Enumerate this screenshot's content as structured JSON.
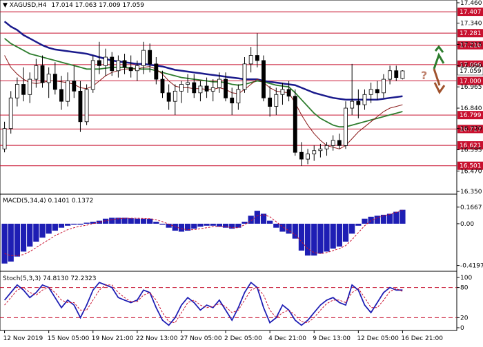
{
  "chart_data": [
    {
      "type": "candlestick",
      "title": "XAGUSD,H4  17.014 17.063 17.009 17.059",
      "symbol": "XAGUSD,H4",
      "ohlc_label": "17.014 17.063 17.009 17.059",
      "ylim": [
        16.35,
        17.46
      ],
      "y_ticks": [
        "17.460",
        "17.340",
        "17.215",
        "17.090",
        "16.965",
        "16.840",
        "16.720",
        "16.595",
        "16.470",
        "16.350"
      ],
      "resistance_levels": [
        "17.407",
        "17.281",
        "17.210",
        "17.096"
      ],
      "support_levels": [
        "17.000",
        "16.799",
        "16.717",
        "16.621",
        "16.501"
      ],
      "current_price": "17.059",
      "scenario_marks": {
        "question": "?",
        "up_target": "17.210",
        "down_target": "17.000"
      },
      "candles": [
        {
          "o": 16.6,
          "h": 16.76,
          "l": 16.58,
          "c": 16.72
        },
        {
          "o": 16.72,
          "h": 16.94,
          "l": 16.69,
          "c": 16.9
        },
        {
          "o": 16.9,
          "h": 17.02,
          "l": 16.85,
          "c": 16.98
        },
        {
          "o": 16.98,
          "h": 17.08,
          "l": 16.88,
          "c": 16.92
        },
        {
          "o": 16.92,
          "h": 17.05,
          "l": 16.87,
          "c": 17.01
        },
        {
          "o": 17.01,
          "h": 17.13,
          "l": 16.96,
          "c": 17.09
        },
        {
          "o": 17.09,
          "h": 17.15,
          "l": 16.96,
          "c": 16.99
        },
        {
          "o": 16.99,
          "h": 17.08,
          "l": 16.9,
          "c": 17.04
        },
        {
          "o": 17.04,
          "h": 17.11,
          "l": 16.92,
          "c": 16.95
        },
        {
          "o": 16.95,
          "h": 17.03,
          "l": 16.83,
          "c": 16.88
        },
        {
          "o": 16.88,
          "h": 17.05,
          "l": 16.85,
          "c": 17.0
        },
        {
          "o": 17.0,
          "h": 17.09,
          "l": 16.9,
          "c": 16.94
        },
        {
          "o": 16.94,
          "h": 17.0,
          "l": 16.7,
          "c": 16.76
        },
        {
          "o": 16.76,
          "h": 16.98,
          "l": 16.74,
          "c": 16.95
        },
        {
          "o": 16.95,
          "h": 17.15,
          "l": 16.93,
          "c": 17.12
        },
        {
          "o": 17.12,
          "h": 17.23,
          "l": 17.04,
          "c": 17.09
        },
        {
          "o": 17.09,
          "h": 17.19,
          "l": 17.03,
          "c": 17.14
        },
        {
          "o": 17.14,
          "h": 17.17,
          "l": 17.03,
          "c": 17.06
        },
        {
          "o": 17.06,
          "h": 17.15,
          "l": 17.02,
          "c": 17.12
        },
        {
          "o": 17.12,
          "h": 17.16,
          "l": 17.04,
          "c": 17.08
        },
        {
          "o": 17.08,
          "h": 17.15,
          "l": 17.02,
          "c": 17.06
        },
        {
          "o": 17.06,
          "h": 17.12,
          "l": 17.0,
          "c": 17.09
        },
        {
          "o": 17.09,
          "h": 17.23,
          "l": 17.04,
          "c": 17.18
        },
        {
          "o": 17.18,
          "h": 17.22,
          "l": 17.05,
          "c": 17.1
        },
        {
          "o": 17.1,
          "h": 17.14,
          "l": 16.98,
          "c": 17.01
        },
        {
          "o": 17.01,
          "h": 17.06,
          "l": 16.9,
          "c": 16.93
        },
        {
          "o": 16.93,
          "h": 16.98,
          "l": 16.83,
          "c": 16.88
        },
        {
          "o": 16.88,
          "h": 16.98,
          "l": 16.8,
          "c": 16.94
        },
        {
          "o": 16.94,
          "h": 17.0,
          "l": 16.87,
          "c": 16.98
        },
        {
          "o": 16.98,
          "h": 17.04,
          "l": 16.93,
          "c": 16.99
        },
        {
          "o": 16.99,
          "h": 17.04,
          "l": 16.9,
          "c": 16.93
        },
        {
          "o": 16.93,
          "h": 17.0,
          "l": 16.88,
          "c": 16.97
        },
        {
          "o": 16.97,
          "h": 17.02,
          "l": 16.9,
          "c": 16.94
        },
        {
          "o": 16.94,
          "h": 17.01,
          "l": 16.88,
          "c": 16.96
        },
        {
          "o": 16.96,
          "h": 17.05,
          "l": 16.93,
          "c": 17.01
        },
        {
          "o": 17.01,
          "h": 17.05,
          "l": 16.88,
          "c": 16.9
        },
        {
          "o": 16.9,
          "h": 16.96,
          "l": 16.8,
          "c": 16.87
        },
        {
          "o": 16.87,
          "h": 16.98,
          "l": 16.83,
          "c": 16.95
        },
        {
          "o": 16.95,
          "h": 17.14,
          "l": 16.93,
          "c": 17.1
        },
        {
          "o": 17.1,
          "h": 17.2,
          "l": 17.05,
          "c": 17.15
        },
        {
          "o": 17.15,
          "h": 17.28,
          "l": 17.08,
          "c": 17.12
        },
        {
          "o": 17.12,
          "h": 17.15,
          "l": 16.88,
          "c": 16.9
        },
        {
          "o": 16.9,
          "h": 16.97,
          "l": 16.79,
          "c": 16.85
        },
        {
          "o": 16.85,
          "h": 16.96,
          "l": 16.8,
          "c": 16.92
        },
        {
          "o": 16.92,
          "h": 16.99,
          "l": 16.86,
          "c": 16.95
        },
        {
          "o": 16.95,
          "h": 17.0,
          "l": 16.88,
          "c": 16.91
        },
        {
          "o": 16.91,
          "h": 16.95,
          "l": 16.56,
          "c": 16.58
        },
        {
          "o": 16.58,
          "h": 16.64,
          "l": 16.5,
          "c": 16.54
        },
        {
          "o": 16.54,
          "h": 16.6,
          "l": 16.51,
          "c": 16.57
        },
        {
          "o": 16.57,
          "h": 16.62,
          "l": 16.53,
          "c": 16.59
        },
        {
          "o": 16.59,
          "h": 16.63,
          "l": 16.55,
          "c": 16.6
        },
        {
          "o": 16.6,
          "h": 16.64,
          "l": 16.56,
          "c": 16.62
        },
        {
          "o": 16.62,
          "h": 16.68,
          "l": 16.59,
          "c": 16.65
        },
        {
          "o": 16.65,
          "h": 16.69,
          "l": 16.6,
          "c": 16.62
        },
        {
          "o": 16.62,
          "h": 16.88,
          "l": 16.6,
          "c": 16.84
        },
        {
          "o": 16.84,
          "h": 17.1,
          "l": 16.8,
          "c": 16.88
        },
        {
          "o": 16.88,
          "h": 16.95,
          "l": 16.78,
          "c": 16.86
        },
        {
          "o": 16.86,
          "h": 16.95,
          "l": 16.83,
          "c": 16.92
        },
        {
          "o": 16.92,
          "h": 16.99,
          "l": 16.87,
          "c": 16.95
        },
        {
          "o": 16.95,
          "h": 17.0,
          "l": 16.89,
          "c": 16.93
        },
        {
          "o": 16.93,
          "h": 17.04,
          "l": 16.9,
          "c": 17.01
        },
        {
          "o": 17.01,
          "h": 17.09,
          "l": 16.98,
          "c": 17.06
        },
        {
          "o": 17.06,
          "h": 17.09,
          "l": 17.0,
          "c": 17.02
        },
        {
          "o": 17.014,
          "h": 17.063,
          "l": 17.009,
          "c": 17.059
        }
      ],
      "series": [
        {
          "name": "",
          "color": "#1a1a8c",
          "values": [
            17.35,
            17.32,
            17.3,
            17.27,
            17.25,
            17.23,
            17.21,
            17.195,
            17.185,
            17.18,
            17.175,
            17.17,
            17.165,
            17.16,
            17.15,
            17.14,
            17.13,
            17.12,
            17.115,
            17.11,
            17.105,
            17.1,
            17.1,
            17.095,
            17.09,
            17.085,
            17.075,
            17.065,
            17.06,
            17.055,
            17.05,
            17.045,
            17.04,
            17.035,
            17.03,
            17.025,
            17.02,
            17.015,
            17.01,
            17.01,
            17.01,
            17.0,
            16.995,
            16.99,
            16.985,
            16.98,
            16.975,
            16.96,
            16.945,
            16.93,
            16.92,
            16.91,
            16.9,
            16.895,
            16.89,
            16.89,
            16.89,
            16.89,
            16.89,
            16.89,
            16.895,
            16.9,
            16.905,
            16.91
          ]
        },
        {
          "name": "",
          "color": "#2e7d2e",
          "values": [
            17.25,
            17.22,
            17.2,
            17.18,
            17.16,
            17.15,
            17.14,
            17.13,
            17.12,
            17.11,
            17.1,
            17.09,
            17.08,
            17.07,
            17.07,
            17.07,
            17.075,
            17.08,
            17.08,
            17.08,
            17.075,
            17.07,
            17.07,
            17.07,
            17.06,
            17.05,
            17.04,
            17.03,
            17.02,
            17.015,
            17.01,
            17.005,
            17.0,
            16.995,
            16.995,
            16.99,
            16.98,
            16.975,
            16.98,
            16.99,
            17.0,
            16.995,
            16.985,
            16.975,
            16.97,
            16.965,
            16.93,
            16.89,
            16.85,
            16.81,
            16.78,
            16.76,
            16.74,
            16.73,
            16.73,
            16.74,
            16.75,
            16.76,
            16.77,
            16.78,
            16.79,
            16.8,
            16.81,
            16.82
          ]
        },
        {
          "name": "",
          "color": "#8b1a1a",
          "values": [
            17.15,
            17.08,
            17.04,
            17.01,
            16.99,
            16.985,
            16.99,
            17.0,
            17.0,
            16.995,
            16.99,
            16.98,
            16.96,
            16.955,
            16.97,
            17.0,
            17.03,
            17.05,
            17.06,
            17.07,
            17.07,
            17.07,
            17.08,
            17.085,
            17.07,
            17.04,
            17.0,
            16.97,
            16.96,
            16.96,
            16.955,
            16.955,
            16.95,
            16.95,
            16.96,
            16.95,
            16.93,
            16.925,
            16.95,
            16.98,
            17.01,
            16.99,
            16.96,
            16.94,
            16.935,
            16.93,
            16.87,
            16.8,
            16.74,
            16.69,
            16.65,
            16.62,
            16.61,
            16.6,
            16.62,
            16.66,
            16.7,
            16.73,
            16.76,
            16.79,
            16.82,
            16.84,
            16.85,
            16.86
          ]
        }
      ]
    },
    {
      "type": "bar",
      "title": "MACD(5,34,4) 0.1401 0.1372",
      "y_ticks": [
        "0.1667",
        "0.00",
        "-0.4197"
      ],
      "ylim": [
        -0.45,
        0.2
      ],
      "values": [
        -0.4,
        -0.38,
        -0.33,
        -0.28,
        -0.23,
        -0.18,
        -0.14,
        -0.1,
        -0.07,
        -0.04,
        -0.02,
        -0.01,
        -0.01,
        0.01,
        0.02,
        0.03,
        0.05,
        0.06,
        0.06,
        0.06,
        0.055,
        0.05,
        0.05,
        0.05,
        0.02,
        -0.01,
        -0.04,
        -0.07,
        -0.08,
        -0.07,
        -0.05,
        -0.03,
        -0.02,
        -0.02,
        -0.03,
        -0.04,
        -0.05,
        -0.04,
        0.02,
        0.08,
        0.13,
        0.1,
        0.03,
        -0.04,
        -0.08,
        -0.1,
        -0.15,
        -0.27,
        -0.32,
        -0.32,
        -0.3,
        -0.28,
        -0.25,
        -0.23,
        -0.18,
        -0.1,
        -0.02,
        0.05,
        0.07,
        0.08,
        0.09,
        0.1,
        0.12,
        0.14
      ],
      "signal": [
        -0.3,
        -0.32,
        -0.32,
        -0.31,
        -0.28,
        -0.24,
        -0.2,
        -0.16,
        -0.12,
        -0.09,
        -0.06,
        -0.04,
        -0.025,
        -0.015,
        0.0,
        0.015,
        0.03,
        0.04,
        0.05,
        0.055,
        0.055,
        0.055,
        0.052,
        0.05,
        0.04,
        0.02,
        -0.005,
        -0.03,
        -0.05,
        -0.06,
        -0.06,
        -0.05,
        -0.04,
        -0.03,
        -0.028,
        -0.03,
        -0.04,
        -0.04,
        -0.01,
        0.03,
        0.08,
        0.09,
        0.07,
        0.02,
        -0.03,
        -0.07,
        -0.11,
        -0.18,
        -0.25,
        -0.29,
        -0.3,
        -0.29,
        -0.27,
        -0.25,
        -0.22,
        -0.16,
        -0.09,
        -0.02,
        0.03,
        0.06,
        0.08,
        0.095,
        0.115,
        0.137
      ]
    },
    {
      "type": "line",
      "title": "Stoch(5,3,3) 74.8130 72.2323",
      "y_ticks": [
        "100",
        "80",
        "20",
        "0"
      ],
      "ylim": [
        0,
        100
      ],
      "levels": [
        80,
        20
      ],
      "main": [
        55,
        70,
        85,
        75,
        60,
        70,
        85,
        80,
        60,
        40,
        55,
        45,
        20,
        45,
        75,
        90,
        85,
        80,
        60,
        55,
        50,
        55,
        75,
        70,
        40,
        15,
        5,
        20,
        45,
        60,
        50,
        35,
        45,
        40,
        55,
        35,
        15,
        40,
        70,
        90,
        80,
        40,
        10,
        20,
        45,
        35,
        15,
        5,
        15,
        30,
        45,
        55,
        60,
        50,
        45,
        85,
        75,
        45,
        30,
        50,
        70,
        80,
        75,
        75
      ],
      "signal": [
        45,
        60,
        75,
        80,
        70,
        65,
        75,
        80,
        70,
        55,
        50,
        50,
        35,
        35,
        55,
        75,
        85,
        85,
        70,
        60,
        52,
        52,
        65,
        70,
        55,
        30,
        12,
        10,
        30,
        50,
        55,
        45,
        40,
        42,
        48,
        42,
        30,
        35,
        55,
        75,
        80,
        65,
        35,
        20,
        30,
        35,
        25,
        12,
        10,
        20,
        35,
        48,
        55,
        55,
        50,
        70,
        78,
        60,
        40,
        40,
        55,
        72,
        78,
        72
      ]
    }
  ],
  "x_axis_labels": [
    "12 Nov 2019",
    "15 Nov 05:00",
    "19 Nov 21:00",
    "22 Nov 13:00",
    "27 Nov 05:00",
    "2 Dec 05:00",
    "4 Dec 21:00",
    "9 Dec 13:00",
    "12 Dec 05:00",
    "16 Dec 21:00"
  ],
  "colors": {
    "resistance": "#c8102e",
    "support": "#c8102e",
    "current_price_box": "#ffffff",
    "candles": "#000000",
    "macd_bars": "#1e1eb4",
    "macd_signal": "#c8102e",
    "stoch_main": "#1e1eb4",
    "stoch_signal": "#c8102e",
    "arrow_up": "#2e7d2e",
    "arrow_down": "#a0522d",
    "question": "#c0826e"
  }
}
